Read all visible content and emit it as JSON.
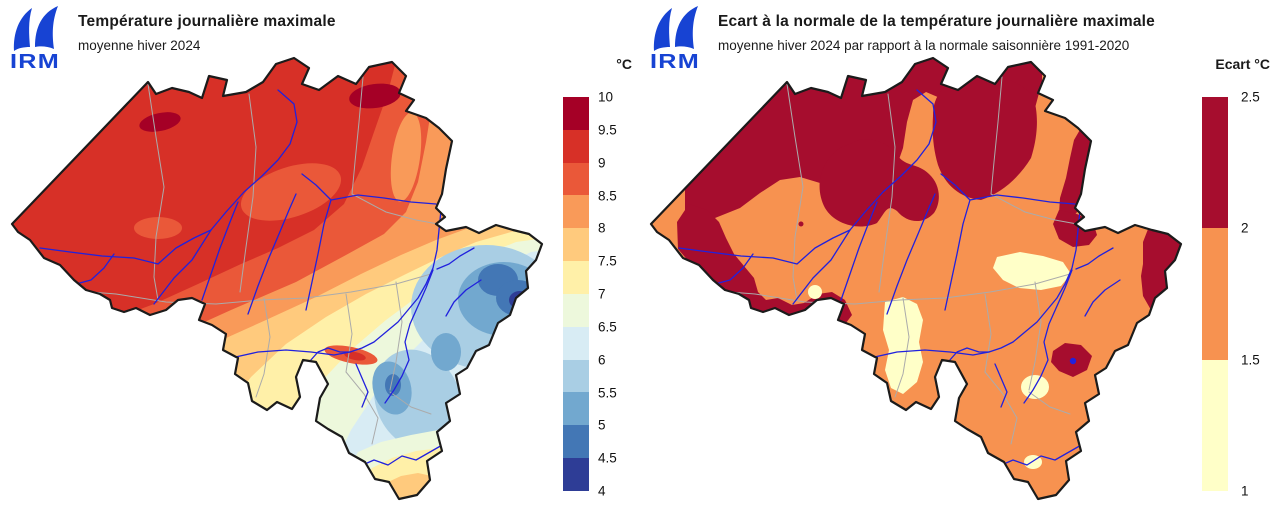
{
  "figure": {
    "background": "#ffffff"
  },
  "logo": {
    "text": "IRM",
    "color": "#1743D3"
  },
  "panels": [
    {
      "title": "Température journalière maximale",
      "subtitle": "moyenne hiver 2024",
      "legend": {
        "title": "°C",
        "tick_labels": [
          "10",
          "9.5",
          "9",
          "8.5",
          "8",
          "7.5",
          "7",
          "6.5",
          "6",
          "5.5",
          "5",
          "4.5",
          "4"
        ],
        "segment_colors": [
          "#A50026",
          "#D73027",
          "#EA5839",
          "#F99A59",
          "#FFCA7D",
          "#FFF0A8",
          "#EDF8DC",
          "#D8ECF4",
          "#A9CEE4",
          "#72A8CF",
          "#4377B5",
          "#2E3D96"
        ]
      }
    },
    {
      "title": "Ecart à la normale de la température journalière maximale",
      "subtitle": "moyenne hiver 2024 par rapport à la normale saisonnière 1991-2020",
      "legend": {
        "title": "Ecart °C",
        "tick_labels": [
          "2.5",
          "2",
          "1.5",
          "1"
        ],
        "segment_colors": [
          "#A60D2E",
          "#F79250",
          "#FFFFC8"
        ]
      }
    }
  ],
  "map": {
    "region": "Belgique",
    "outline_color": "#1b1b1b",
    "river_color": "#2121DD",
    "province_border_color": "#ABABAB",
    "sea_color": "#FFFFFF"
  },
  "chart_data": [
    {
      "type": "map",
      "map_style": "filled-contour choropleth of Belgium with rivers and province borders",
      "title": "Température journalière maximale",
      "subtitle": "moyenne hiver 2024",
      "unit": "°C",
      "legend_title": "°C",
      "scale_breaks": [
        4,
        4.5,
        5,
        5.5,
        6,
        6.5,
        7,
        7.5,
        8,
        8.5,
        9,
        9.5,
        10
      ],
      "scale_colors_high_to_low": [
        "#A50026",
        "#D73027",
        "#EA5839",
        "#F99A59",
        "#FFCA7D",
        "#FFF0A8",
        "#EDF8DC",
        "#D8ECF4",
        "#A9CEE4",
        "#72A8CF",
        "#4377B5",
        "#2E3D96"
      ],
      "spatial_pattern": "9-10 °C in the northwest (Flanders) with small 9.5-10 °C spots, decreasing southeastward through 8-9 °C in the centre, 6.5-7.5 °C in the pre-Ardennes, down to 4-4.5 °C over the Hautes Fagnes in the east; slightly warmer (7-8 °C) again at the far southern tip"
    },
    {
      "type": "map",
      "map_style": "filled-contour choropleth of Belgium with rivers and province borders",
      "title": "Ecart à la normale de la température journalière maximale",
      "subtitle": "moyenne hiver 2024 par rapport à la normale saisonnière 1991-2020",
      "unit": "°C",
      "legend_title": "Ecart °C",
      "scale_breaks": [
        1,
        1.5,
        2,
        2.5
      ],
      "scale_colors_high_to_low": [
        "#A60D2E",
        "#F79250",
        "#FFFFC8"
      ],
      "spatial_pattern": "anomaly mostly +1.5 to +2 °C (orange); +2 to +2.5 °C (dark red) along the northern border, the far west, northern Limburg, the eastern border and a few interior spots; +1 to +1.5 °C (pale yellow) in a strip of central Hainaut, the Liège valley and a few small southern areas"
    }
  ]
}
